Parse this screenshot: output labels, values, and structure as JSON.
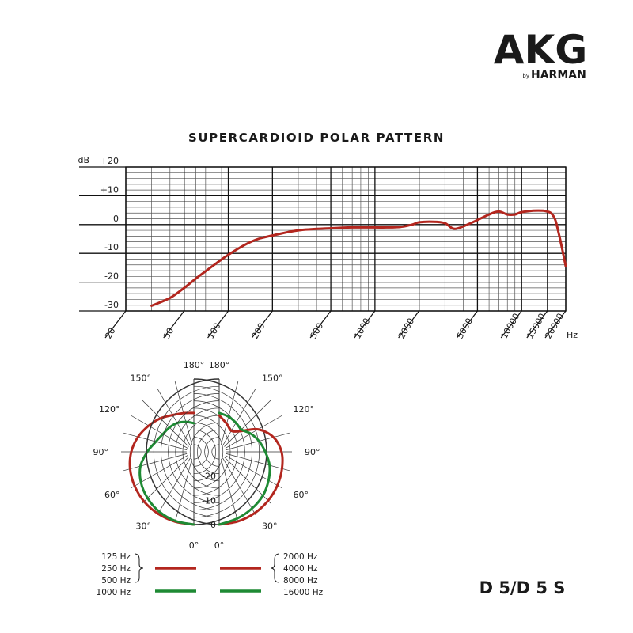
{
  "brand": {
    "name": "AKG",
    "tagline_by": "by",
    "tagline_company": "HARMAN",
    "color": "#1a1a1a"
  },
  "model": "D 5/D 5 S",
  "chart_data": [
    {
      "type": "line",
      "title": "SUPERCARDIOID POLAR PATTERN",
      "ylabel": "dB",
      "xlabel": "Hz",
      "x_scale": "log",
      "xlim": [
        20,
        20000
      ],
      "ylim": [
        -30,
        20
      ],
      "grid": true,
      "y_ticks": [
        {
          "value": 20,
          "label": "+20"
        },
        {
          "value": 10,
          "label": "+10"
        },
        {
          "value": 0,
          "label": "0"
        },
        {
          "value": -10,
          "label": "-10"
        },
        {
          "value": -20,
          "label": "-20"
        },
        {
          "value": -30,
          "label": "-30"
        }
      ],
      "x_ticks": [
        {
          "value": 20,
          "label": "20"
        },
        {
          "value": 50,
          "label": "50"
        },
        {
          "value": 100,
          "label": "100"
        },
        {
          "value": 200,
          "label": "200"
        },
        {
          "value": 500,
          "label": "500"
        },
        {
          "value": 1000,
          "label": "1000"
        },
        {
          "value": 2000,
          "label": "2000"
        },
        {
          "value": 5000,
          "label": "5000"
        },
        {
          "value": 10000,
          "label": "10000"
        },
        {
          "value": 15000,
          "label": "15000"
        },
        {
          "value": 20000,
          "label": "20000"
        }
      ],
      "series": [
        {
          "color": "#b3261e",
          "x": [
            30,
            40,
            50,
            60,
            80,
            100,
            130,
            160,
            200,
            300,
            500,
            700,
            1000,
            1200,
            1500,
            1800,
            2000,
            2500,
            3000,
            3500,
            4500,
            6000,
            7000,
            8000,
            9000,
            10000,
            12000,
            14000,
            15000,
            16000,
            17000,
            18000,
            19000,
            20000
          ],
          "y": [
            -28.2,
            -25.5,
            -22,
            -18.8,
            -14,
            -10.5,
            -7,
            -5,
            -3.8,
            -2,
            -1.3,
            -1,
            -1,
            -1,
            -0.8,
            0,
            0.8,
            1,
            0.5,
            -1.5,
            0.5,
            3.5,
            4.5,
            3.5,
            3.5,
            4.3,
            4.8,
            4.8,
            4.5,
            3.8,
            1.5,
            -3.5,
            -9,
            -14.5
          ]
        }
      ]
    },
    {
      "type": "polar",
      "angle_labels": {
        "left": [
          {
            "deg": 180,
            "label": "180°"
          },
          {
            "deg": 150,
            "label": "150°"
          },
          {
            "deg": 120,
            "label": "120°"
          },
          {
            "deg": 90,
            "label": "90°"
          },
          {
            "deg": 60,
            "label": "60°"
          },
          {
            "deg": 30,
            "label": "30°"
          },
          {
            "deg": 0,
            "label": "0°"
          }
        ],
        "right": [
          {
            "deg": 180,
            "label": "180°"
          },
          {
            "deg": 150,
            "label": "150°"
          },
          {
            "deg": 120,
            "label": "120°"
          },
          {
            "deg": 90,
            "label": "90°"
          },
          {
            "deg": 60,
            "label": "60°"
          },
          {
            "deg": 30,
            "label": "30°"
          },
          {
            "deg": 0,
            "label": "0°"
          }
        ]
      },
      "radial_scale_db": [
        -30,
        0
      ],
      "radial_tick_labels": [
        {
          "db": -20,
          "label": "-20"
        },
        {
          "db": -10,
          "label": "-10"
        },
        {
          "db": 0,
          "label": "0"
        }
      ],
      "series": [
        {
          "side": "left",
          "color": "#b3261e",
          "angles": [
            0,
            15,
            30,
            45,
            60,
            75,
            90,
            105,
            120,
            135,
            150,
            165,
            180
          ],
          "db": [
            0,
            -0.2,
            -0.5,
            -1,
            -1.8,
            -2.8,
            -4.2,
            -6.2,
            -8.5,
            -10.5,
            -12.5,
            -13.5,
            -14
          ]
        },
        {
          "side": "left",
          "color": "#1e8a34",
          "angles": [
            0,
            15,
            30,
            45,
            60,
            75,
            90,
            105,
            120,
            135,
            150,
            165,
            180
          ],
          "db": [
            0,
            -0.5,
            -1.5,
            -3,
            -4.8,
            -7.2,
            -10.8,
            -13.8,
            -15.3,
            -15.8,
            -16.3,
            -17.2,
            -18.2
          ]
        },
        {
          "side": "right",
          "color": "#b3261e",
          "angles": [
            0,
            15,
            30,
            45,
            60,
            75,
            90,
            105,
            120,
            135,
            150,
            165,
            180
          ],
          "db": [
            0,
            -0.3,
            -0.8,
            -1.5,
            -2.3,
            -3.2,
            -4.3,
            -6.8,
            -11.5,
            -18,
            -20,
            -18,
            -15
          ]
        },
        {
          "side": "right",
          "color": "#1e8a34",
          "angles": [
            0,
            15,
            30,
            45,
            60,
            75,
            90,
            105,
            120,
            135,
            150,
            165,
            180
          ],
          "db": [
            0,
            -1.5,
            -3,
            -4.5,
            -6.5,
            -8.5,
            -11,
            -13,
            -15,
            -17,
            -16.2,
            -15,
            -14
          ]
        }
      ],
      "legend": {
        "left": {
          "red_labels": [
            "125 Hz",
            "250 Hz",
            "500 Hz"
          ],
          "green_labels": [
            "1000 Hz"
          ]
        },
        "right": {
          "red_labels": [
            "2000 Hz",
            "4000 Hz",
            "8000 Hz"
          ],
          "green_labels": [
            "16000 Hz"
          ]
        }
      }
    }
  ]
}
